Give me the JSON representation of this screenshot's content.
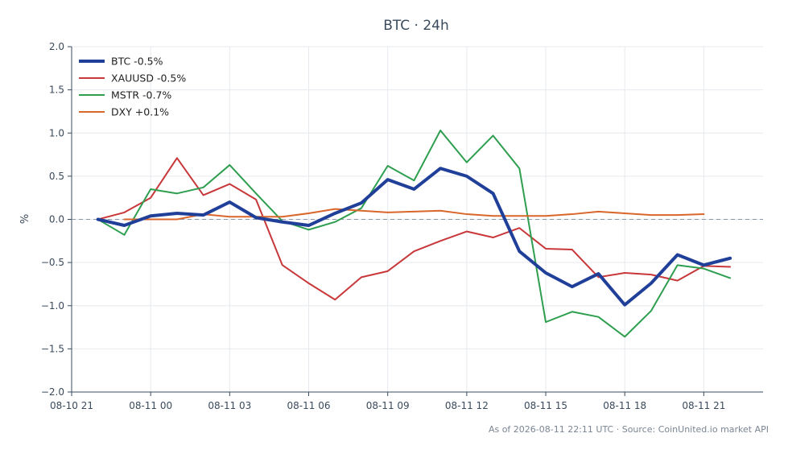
{
  "chart_data": {
    "type": "line",
    "title": "BTC · 24h",
    "ylabel": "%",
    "xlabel": "",
    "ylim": [
      -2.0,
      2.0
    ],
    "xlim": [
      "08-10 21:00",
      "08-11 23:15"
    ],
    "y_ticks": [
      "2.0",
      "1.5",
      "1.0",
      "0.5",
      "0.0",
      "−0.5",
      "−1.0",
      "−1.5",
      "−2.0"
    ],
    "x_ticks": [
      "08-10 21",
      "08-11 00",
      "08-11 03",
      "08-11 06",
      "08-11 09",
      "08-11 12",
      "08-11 15",
      "08-11 18",
      "08-11 21"
    ],
    "grid": true,
    "legend_position": "top-left",
    "zero_line": true,
    "series": [
      {
        "name": "BTC -0.5%",
        "color": "#1f3f99",
        "emphasis": true,
        "x": [
          "08-10 22:00",
          "08-10 23:00",
          "08-11 00:00",
          "08-11 01:00",
          "08-11 02:00",
          "08-11 03:00",
          "08-11 04:00",
          "08-11 05:00",
          "08-11 06:00",
          "08-11 07:00",
          "08-11 08:00",
          "08-11 09:00",
          "08-11 10:00",
          "08-11 11:00",
          "08-11 12:00",
          "08-11 13:00",
          "08-11 14:00",
          "08-11 15:00",
          "08-11 16:00",
          "08-11 17:00",
          "08-11 18:00",
          "08-11 19:00",
          "08-11 20:00",
          "08-11 21:00",
          "08-11 22:00"
        ],
        "y": [
          0.0,
          -0.07,
          0.04,
          0.07,
          0.05,
          0.2,
          0.02,
          -0.03,
          -0.07,
          0.07,
          0.19,
          0.46,
          0.35,
          0.59,
          0.5,
          0.3,
          -0.37,
          -0.62,
          -0.78,
          -0.63,
          -0.99,
          -0.74,
          -0.41,
          -0.53,
          -0.45
        ]
      },
      {
        "name": "XAUUSD -0.5%",
        "color": "#c8373a",
        "emphasis": false,
        "x": [
          "08-10 22:00",
          "08-10 23:00",
          "08-11 00:00",
          "08-11 01:00",
          "08-11 02:00",
          "08-11 03:00",
          "08-11 04:00",
          "08-11 05:00",
          "08-11 06:00",
          "08-11 07:00",
          "08-11 08:00",
          "08-11 09:00",
          "08-11 10:00",
          "08-11 11:00",
          "08-11 12:00",
          "08-11 13:00",
          "08-11 14:00",
          "08-11 15:00",
          "08-11 16:00",
          "08-11 17:00",
          "08-11 18:00",
          "08-11 19:00",
          "08-11 20:00",
          "08-11 21:00",
          "08-11 22:00"
        ],
        "y": [
          0.0,
          0.08,
          0.25,
          0.71,
          0.28,
          0.41,
          0.23,
          -0.53,
          -0.74,
          -0.93,
          -0.67,
          -0.6,
          -0.37,
          -0.25,
          -0.14,
          -0.21,
          -0.1,
          -0.34,
          -0.35,
          -0.67,
          -0.62,
          -0.64,
          -0.71,
          -0.54,
          -0.55
        ]
      },
      {
        "name": "MSTR -0.7%",
        "color": "#2e9e4f",
        "emphasis": false,
        "x": [
          "08-10 22:00",
          "08-10 23:00",
          "08-11 00:00",
          "08-11 01:00",
          "08-11 02:00",
          "08-11 03:00",
          "08-11 04:00",
          "08-11 05:00",
          "08-11 06:00",
          "08-11 07:00",
          "08-11 08:00",
          "08-11 09:00",
          "08-11 10:00",
          "08-11 11:00",
          "08-11 12:00",
          "08-11 13:00",
          "08-11 14:00",
          "08-11 15:00",
          "08-11 16:00",
          "08-11 17:00",
          "08-11 18:00",
          "08-11 19:00",
          "08-11 20:00",
          "08-11 21:00",
          "08-11 22:00"
        ],
        "y": [
          0.0,
          -0.18,
          0.35,
          0.3,
          0.37,
          0.63,
          0.3,
          -0.02,
          -0.12,
          -0.03,
          0.13,
          0.62,
          0.45,
          1.03,
          0.66,
          0.97,
          0.59,
          -1.19,
          -1.07,
          -1.13,
          -1.36,
          -1.06,
          -0.53,
          -0.57,
          -0.68
        ]
      },
      {
        "name": "DXY +0.1%",
        "color": "#d9662b",
        "emphasis": false,
        "x": [
          "08-10 23:00",
          "08-11 00:00",
          "08-11 01:00",
          "08-11 02:00",
          "08-11 03:00",
          "08-11 04:00",
          "08-11 05:00",
          "08-11 06:00",
          "08-11 07:00",
          "08-11 08:00",
          "08-11 09:00",
          "08-11 10:00",
          "08-11 11:00",
          "08-11 12:00",
          "08-11 13:00",
          "08-11 14:00",
          "08-11 15:00",
          "08-11 16:00",
          "08-11 17:00",
          "08-11 18:00",
          "08-11 19:00",
          "08-11 20:00",
          "08-11 21:00"
        ],
        "y": [
          0.0,
          0.0,
          0.0,
          0.06,
          0.03,
          0.03,
          0.03,
          0.07,
          0.12,
          0.1,
          0.08,
          0.09,
          0.1,
          0.06,
          0.04,
          0.04,
          0.04,
          0.06,
          0.09,
          0.07,
          0.05,
          0.05,
          0.06
        ]
      }
    ]
  },
  "footer": {
    "text": "As of 2026-08-11 22:11 UTC · Source: CoinUnited.io market API"
  }
}
